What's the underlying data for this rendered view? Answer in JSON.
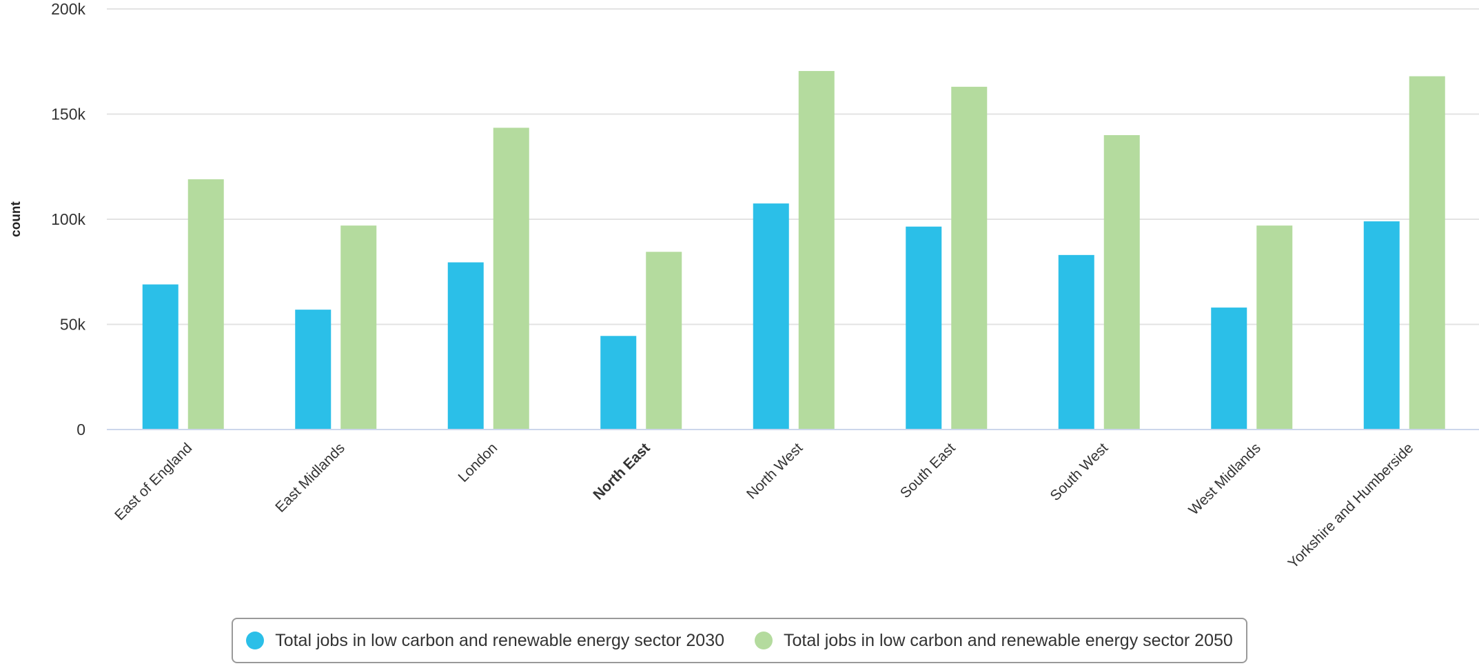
{
  "chart_data": {
    "type": "bar",
    "categories": [
      "East of England",
      "East Midlands",
      "London",
      "North East",
      "North West",
      "South East",
      "South West",
      "West Midlands",
      "Yorkshire and Humberside"
    ],
    "highlighted_category": "North East",
    "series": [
      {
        "name": "Total jobs in low carbon and renewable energy sector 2030",
        "color": "#2bbfe8",
        "values": [
          69000,
          57000,
          79500,
          44500,
          107500,
          96500,
          83000,
          58000,
          99000
        ]
      },
      {
        "name": "Total jobs in low carbon and renewable energy sector 2050",
        "color": "#b4db9e",
        "values": [
          119000,
          97000,
          143500,
          84500,
          170500,
          163000,
          140000,
          97000,
          168000
        ]
      }
    ],
    "ylabel": "count",
    "ylim": [
      0,
      200000
    ],
    "yticks": [
      0,
      50000,
      100000,
      150000,
      200000
    ],
    "ytick_labels": [
      "0",
      "50k",
      "100k",
      "150k",
      "200k"
    ],
    "grid": true,
    "legend_position": "bottom"
  }
}
